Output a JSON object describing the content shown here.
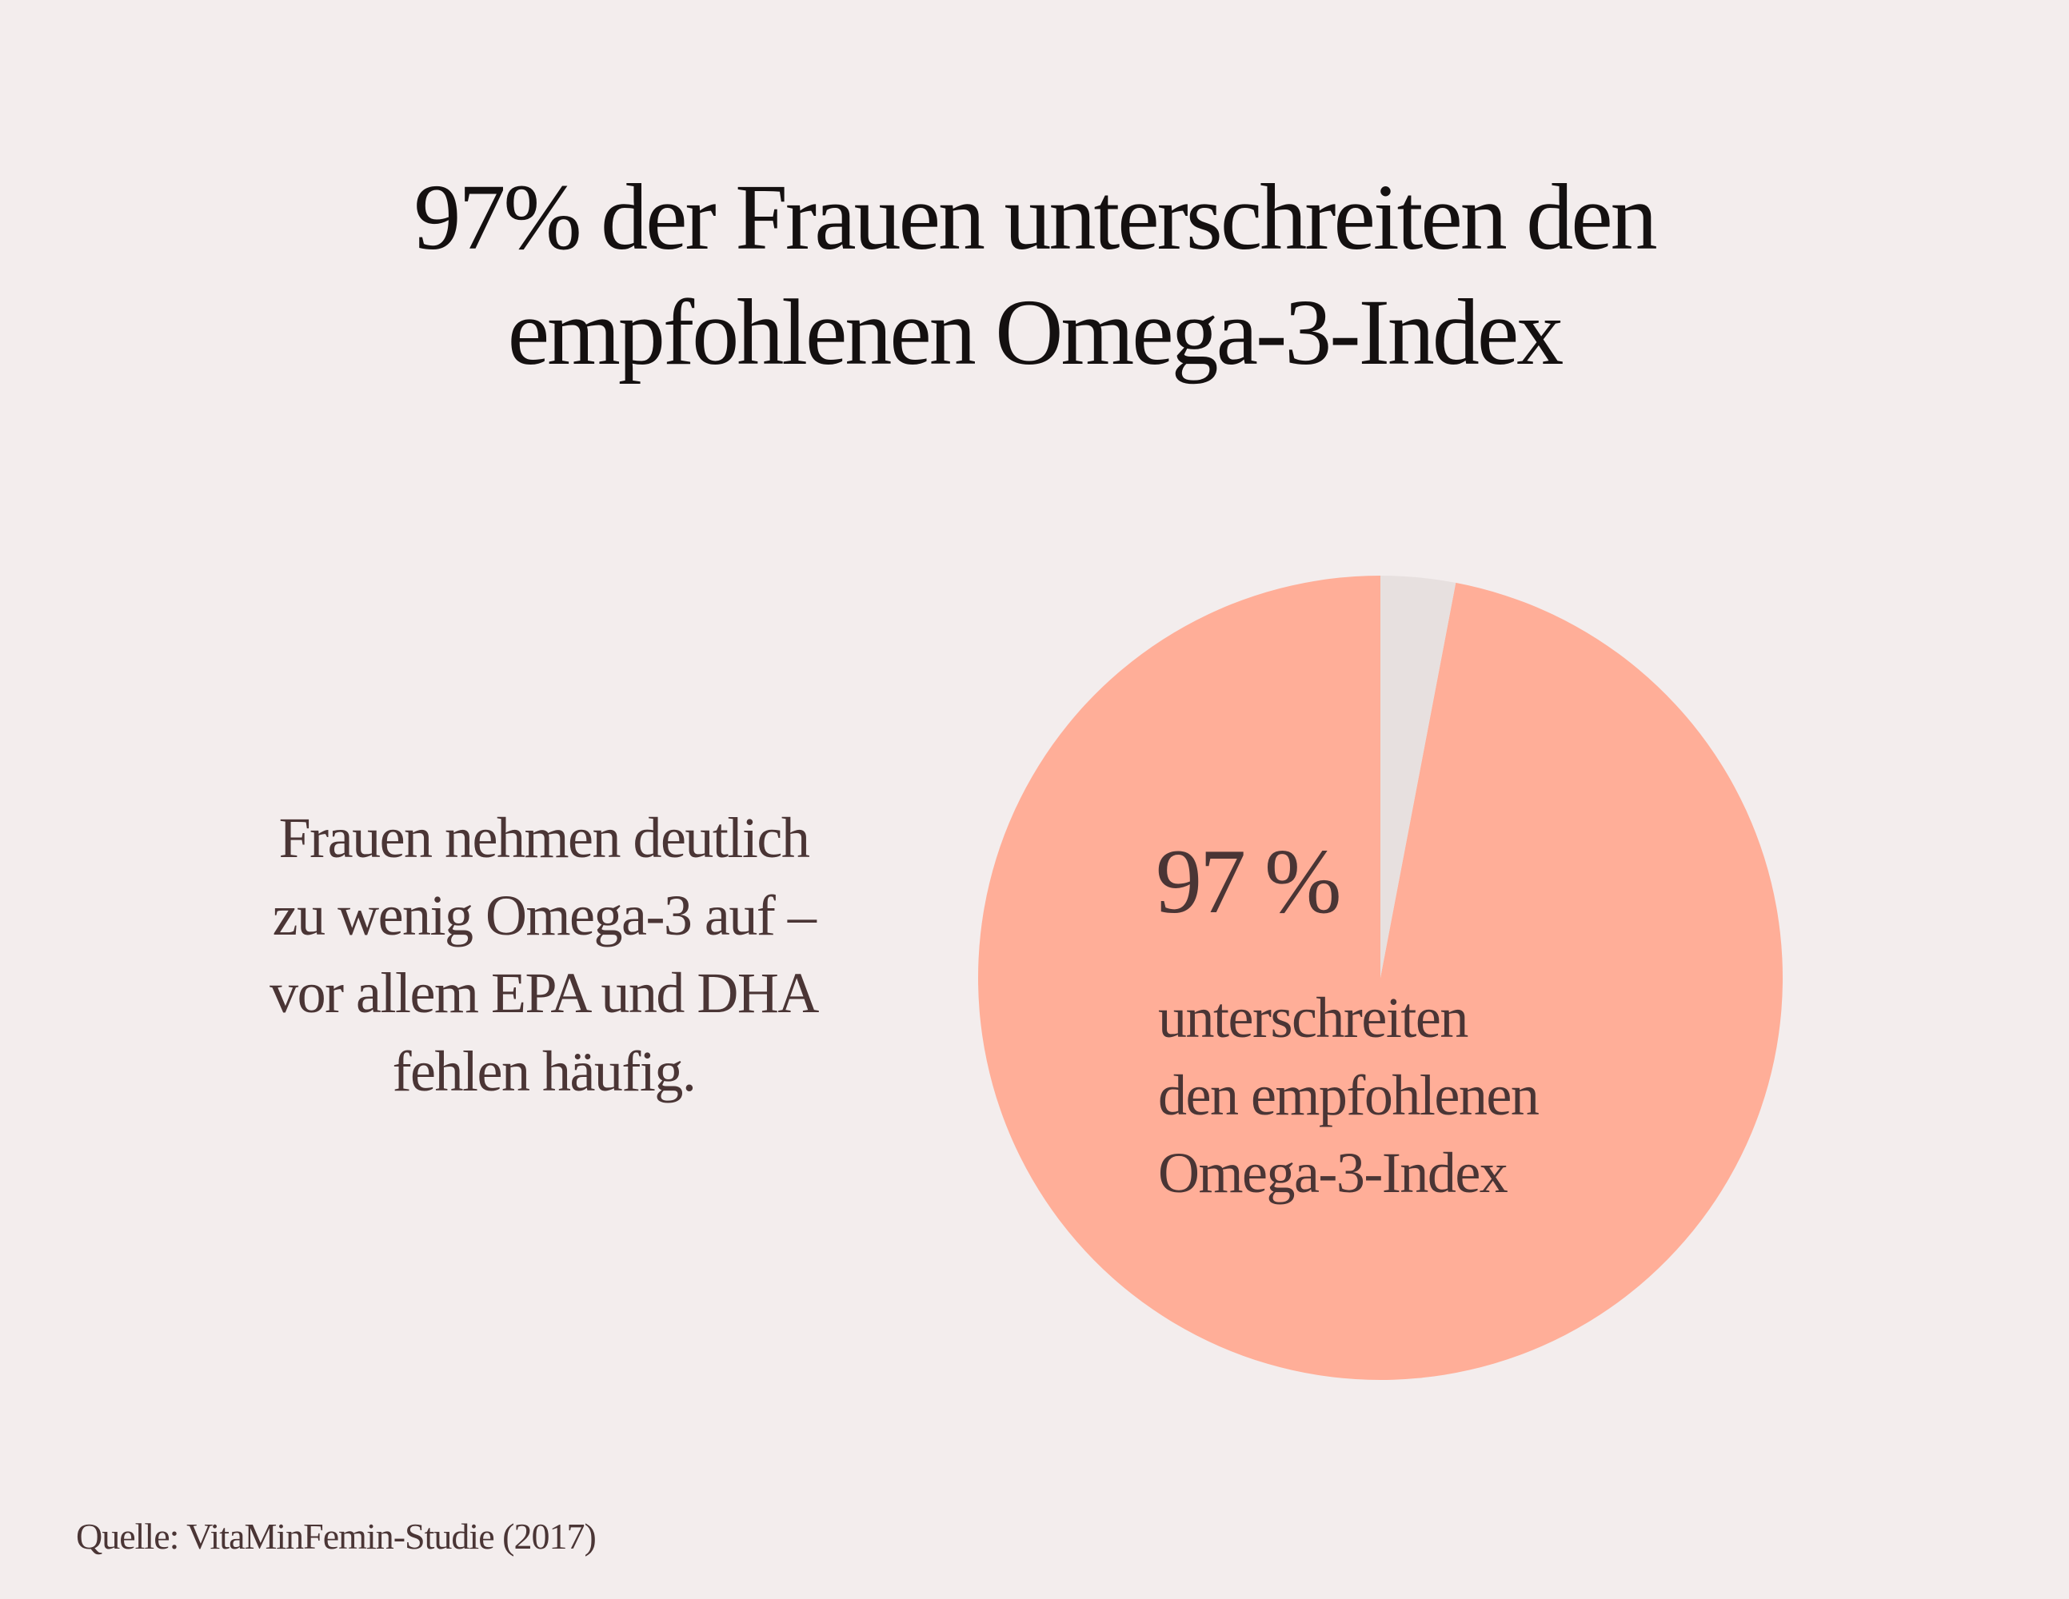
{
  "title_lines": [
    "97% der Frauen unterschreiten den",
    "empfohlenen Omega-3-Index"
  ],
  "description_lines": [
    "Frauen nehmen deutlich",
    "zu wenig Omega-3 auf –",
    "vor allem EPA und DHA",
    "fehlen häufig."
  ],
  "source": "Quelle: VitaMinFemin-Studie (2017)",
  "chart_data": {
    "type": "pie",
    "slices": [
      {
        "value": 97,
        "color": "#ffae98",
        "label": "97 %",
        "description_lines": [
          "unterschreiten",
          "den empfohlenen",
          "Omega-3-Index"
        ]
      },
      {
        "value": 3,
        "color": "#e7e0df"
      }
    ]
  }
}
